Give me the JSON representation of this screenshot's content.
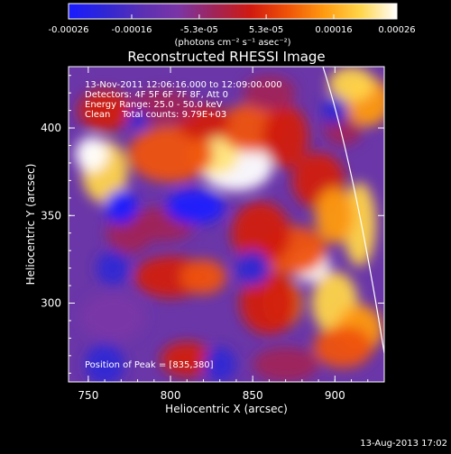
{
  "colorbar": {
    "tick_labels": [
      "-0.00026",
      "-0.00016",
      "-5.3e-05",
      "5.3e-05",
      "0.00016",
      "0.00026"
    ],
    "range": [
      -0.00026,
      0.00026
    ],
    "units": "(photons cm⁻² s⁻¹ asec⁻²)",
    "colors": [
      "#1a1aff",
      "#2f26d4",
      "#5a2fb4",
      "#7a35a6",
      "#a02458",
      "#d11a0f",
      "#ef5208",
      "#ff9a10",
      "#ffd54a",
      "#ffffff"
    ]
  },
  "chart_data": {
    "type": "heatmap",
    "title": "Reconstructed RHESSI Image",
    "xlabel": "Heliocentric X (arcsec)",
    "ylabel": "Heliocentric Y (arcsec)",
    "xlim": [
      738,
      930
    ],
    "ylim": [
      255,
      435
    ],
    "x_ticks": [
      "750",
      "800",
      "850",
      "900"
    ],
    "y_ticks": [
      "300",
      "350",
      "400"
    ],
    "annotations": [
      "13-Nov-2011 12:06:16.000 to 12:09:00.000",
      "Detectors: 4F 5F 6F 7F 8F, Att 0",
      "Energy Range: 25.0 - 50.0 keV",
      "Clean    Total counts: 9.79E+03"
    ],
    "peak_label": "Position of Peak = [835,380]",
    "peak": [
      835,
      380
    ],
    "limb_color": "#ffffff"
  },
  "footer": {
    "timestamp": "13-Aug-2013 17:02"
  }
}
